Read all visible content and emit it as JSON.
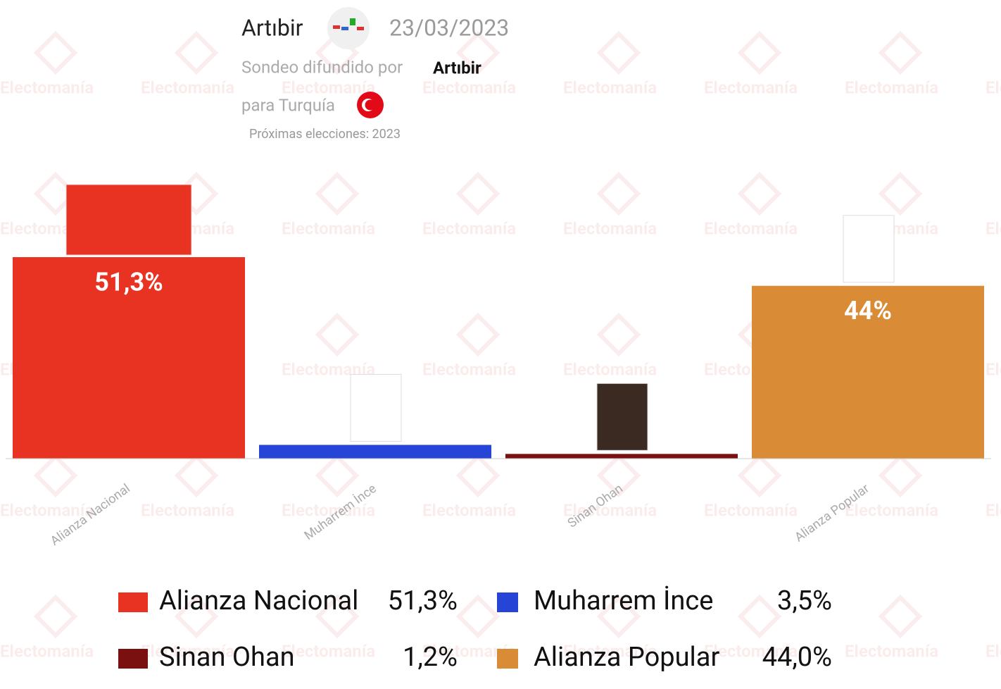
{
  "chart_data": {
    "type": "bar",
    "title": "Artıbir",
    "date": "23/03/2023",
    "subtitle_prefix": "Sondeo difundido por",
    "pollster": "Artıbir",
    "country_text": "para Turquía",
    "next_elections": "Próximas elecciones: 2023",
    "watermark": "Electomanía",
    "categories": [
      "Alianza Nacional",
      "Muharrem İnce",
      "Sinan Ohan",
      "Alianza Popular"
    ],
    "values": [
      51.3,
      3.5,
      1.2,
      44.0
    ],
    "bar_labels": [
      "51,3%",
      null,
      null,
      "44%"
    ],
    "value_labels": [
      "51,3%",
      "3,5%",
      "1,2%",
      "44,0%"
    ],
    "colors": [
      "#e83323",
      "#2644d6",
      "#7a1010",
      "#d98c35"
    ]
  }
}
